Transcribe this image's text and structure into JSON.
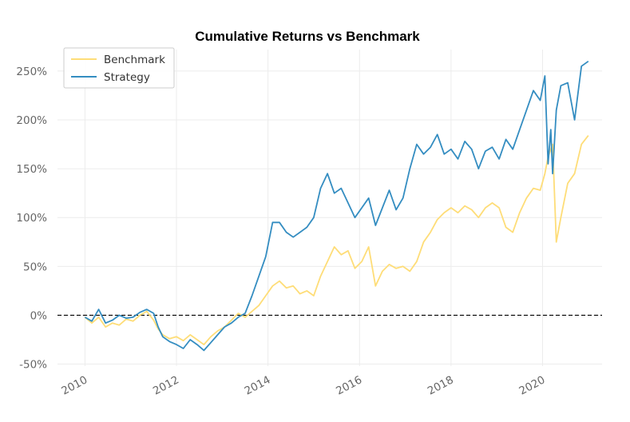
{
  "chart_data": {
    "type": "line",
    "title": "Cumulative Returns vs Benchmark",
    "xlabel": "",
    "ylabel": "",
    "x_range": [
      2009.4,
      2021.3
    ],
    "y_range": [
      -0.52,
      2.72
    ],
    "x_ticks": [
      {
        "value": 2010,
        "label": "2010"
      },
      {
        "value": 2012,
        "label": "2012"
      },
      {
        "value": 2014,
        "label": "2014"
      },
      {
        "value": 2016,
        "label": "2016"
      },
      {
        "value": 2018,
        "label": "2018"
      },
      {
        "value": 2020,
        "label": "2020"
      }
    ],
    "y_ticks": [
      {
        "value": -0.5,
        "label": "-50%"
      },
      {
        "value": 0,
        "label": "0%"
      },
      {
        "value": 0.5,
        "label": "50%"
      },
      {
        "value": 1.0,
        "label": "100%"
      },
      {
        "value": 1.5,
        "label": "150%"
      },
      {
        "value": 2.0,
        "label": "200%"
      },
      {
        "value": 2.5,
        "label": "250%"
      }
    ],
    "grid": true,
    "legend_position": "top-left",
    "zero_line": {
      "y": 0,
      "style": "dashed",
      "color": "#000000"
    },
    "series": [
      {
        "name": "Benchmark",
        "color": "#fedd78",
        "x": [
          2010.0,
          2010.15,
          2010.3,
          2010.45,
          2010.6,
          2010.75,
          2010.9,
          2011.05,
          2011.2,
          2011.35,
          2011.5,
          2011.6,
          2011.7,
          2011.85,
          2012.0,
          2012.15,
          2012.3,
          2012.45,
          2012.6,
          2012.75,
          2012.9,
          2013.05,
          2013.2,
          2013.35,
          2013.5,
          2013.65,
          2013.8,
          2013.95,
          2014.1,
          2014.25,
          2014.4,
          2014.55,
          2014.7,
          2014.85,
          2015.0,
          2015.15,
          2015.3,
          2015.45,
          2015.6,
          2015.75,
          2015.9,
          2016.05,
          2016.2,
          2016.35,
          2016.5,
          2016.65,
          2016.8,
          2016.95,
          2017.1,
          2017.25,
          2017.4,
          2017.55,
          2017.7,
          2017.85,
          2018.0,
          2018.15,
          2018.3,
          2018.45,
          2018.6,
          2018.75,
          2018.9,
          2019.05,
          2019.2,
          2019.35,
          2019.5,
          2019.65,
          2019.8,
          2019.95,
          2020.05,
          2020.12,
          2020.18,
          2020.22,
          2020.3,
          2020.4,
          2020.55,
          2020.7,
          2020.85,
          2021.0
        ],
        "y": [
          -0.02,
          -0.08,
          -0.02,
          -0.12,
          -0.08,
          -0.1,
          -0.04,
          -0.06,
          0.0,
          0.04,
          -0.05,
          -0.14,
          -0.2,
          -0.24,
          -0.22,
          -0.26,
          -0.2,
          -0.25,
          -0.3,
          -0.22,
          -0.16,
          -0.12,
          -0.05,
          0.02,
          -0.02,
          0.04,
          0.1,
          0.2,
          0.3,
          0.35,
          0.28,
          0.3,
          0.22,
          0.25,
          0.2,
          0.4,
          0.55,
          0.7,
          0.62,
          0.66,
          0.48,
          0.55,
          0.7,
          0.3,
          0.45,
          0.52,
          0.48,
          0.5,
          0.45,
          0.55,
          0.75,
          0.85,
          0.98,
          1.05,
          1.1,
          1.05,
          1.12,
          1.08,
          1.0,
          1.1,
          1.15,
          1.1,
          0.9,
          0.85,
          1.05,
          1.2,
          1.3,
          1.28,
          1.45,
          1.62,
          1.7,
          1.75,
          0.75,
          1.0,
          1.35,
          1.45,
          1.75,
          1.84
        ]
      },
      {
        "name": "Strategy",
        "color": "#348dc1",
        "x": [
          2010.0,
          2010.15,
          2010.3,
          2010.45,
          2010.6,
          2010.75,
          2010.9,
          2011.05,
          2011.2,
          2011.35,
          2011.5,
          2011.6,
          2011.7,
          2011.85,
          2012.0,
          2012.15,
          2012.3,
          2012.45,
          2012.6,
          2012.75,
          2012.9,
          2013.05,
          2013.2,
          2013.35,
          2013.5,
          2013.65,
          2013.8,
          2013.95,
          2014.1,
          2014.25,
          2014.4,
          2014.55,
          2014.7,
          2014.85,
          2015.0,
          2015.15,
          2015.3,
          2015.45,
          2015.6,
          2015.75,
          2015.9,
          2016.05,
          2016.2,
          2016.35,
          2016.5,
          2016.65,
          2016.8,
          2016.95,
          2017.1,
          2017.25,
          2017.4,
          2017.55,
          2017.7,
          2017.85,
          2018.0,
          2018.15,
          2018.3,
          2018.45,
          2018.6,
          2018.75,
          2018.9,
          2019.05,
          2019.2,
          2019.35,
          2019.5,
          2019.65,
          2019.8,
          2019.95,
          2020.05,
          2020.12,
          2020.18,
          2020.22,
          2020.3,
          2020.4,
          2020.55,
          2020.7,
          2020.85,
          2021.0
        ],
        "y": [
          -0.02,
          -0.06,
          0.06,
          -0.08,
          -0.05,
          0.0,
          -0.03,
          -0.02,
          0.03,
          0.06,
          0.02,
          -0.12,
          -0.22,
          -0.27,
          -0.3,
          -0.34,
          -0.25,
          -0.3,
          -0.36,
          -0.28,
          -0.2,
          -0.12,
          -0.08,
          -0.02,
          0.02,
          0.2,
          0.4,
          0.6,
          0.95,
          0.95,
          0.85,
          0.8,
          0.85,
          0.9,
          1.0,
          1.3,
          1.45,
          1.25,
          1.3,
          1.15,
          1.0,
          1.1,
          1.2,
          0.92,
          1.1,
          1.28,
          1.08,
          1.2,
          1.5,
          1.75,
          1.65,
          1.72,
          1.85,
          1.65,
          1.7,
          1.6,
          1.78,
          1.7,
          1.5,
          1.68,
          1.72,
          1.6,
          1.8,
          1.7,
          1.9,
          2.1,
          2.3,
          2.2,
          2.45,
          1.55,
          1.9,
          1.45,
          2.1,
          2.35,
          2.38,
          2.0,
          2.55,
          2.6
        ]
      }
    ]
  }
}
